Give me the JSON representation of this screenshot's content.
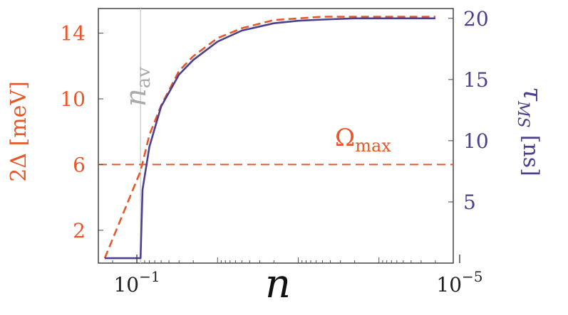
{
  "chart_data": {
    "type": "line",
    "xlabel": "n",
    "x_scale": "log",
    "x_direction": "decreasing",
    "xlim": [
      0.3,
      1.2e-05
    ],
    "x_ticks": [
      {
        "value": 0.1,
        "base": "10",
        "exp": "−1"
      },
      {
        "value": 1e-05,
        "base": "10",
        "exp": "−5"
      }
    ],
    "left_axis": {
      "label_pre": "2Δ [",
      "label_unit": "meV",
      "label_post": "]",
      "color": "#e8572a",
      "ylim": [
        0,
        15.5
      ],
      "ticks": [
        "2",
        "6",
        "10",
        "14"
      ]
    },
    "right_axis": {
      "label_symbol": "τ",
      "label_sub": "MS",
      "label_post": "[ns]",
      "color": "#4b3f8f",
      "ylim": [
        0,
        20.8
      ],
      "ticks": [
        "5",
        "10",
        "15",
        "20"
      ]
    },
    "series": [
      {
        "axis": "left",
        "style": "dashed",
        "color": "#e8572a",
        "x": [
          0.25,
          0.09,
          0.07,
          0.05,
          0.03,
          0.02,
          0.01,
          0.005,
          0.002,
          0.001,
          0.0005,
          0.0001,
          5e-05,
          2e-05
        ],
        "y": [
          0.3,
          5.6,
          7.8,
          9.6,
          11.7,
          12.6,
          13.7,
          14.3,
          14.8,
          14.9,
          15.0,
          15.0,
          15.0,
          15.0
        ]
      },
      {
        "axis": "right",
        "style": "solid",
        "color": "#4b3f8f",
        "x": [
          0.25,
          0.09,
          0.085,
          0.07,
          0.05,
          0.03,
          0.02,
          0.01,
          0.005,
          0.002,
          0.001,
          0.0005,
          0.0002,
          0.0001,
          5e-05,
          2e-05
        ],
        "y": [
          0.4,
          0.4,
          6.0,
          9.5,
          12.8,
          15.4,
          16.6,
          18.1,
          19.0,
          19.6,
          19.8,
          19.9,
          20.0,
          20.0,
          20.0,
          20.0
        ]
      }
    ],
    "annotations": [
      {
        "name": "n-av",
        "text_main": "n",
        "text_sub": "av",
        "color": "#aaaaaa",
        "x": 0.09,
        "style": "vertical-line"
      },
      {
        "name": "omega-max",
        "text_main": "Ω",
        "text_sub": "max",
        "color": "#e8572a",
        "y_left": 6.0,
        "style": "dashed-hline"
      }
    ],
    "grid": false
  }
}
